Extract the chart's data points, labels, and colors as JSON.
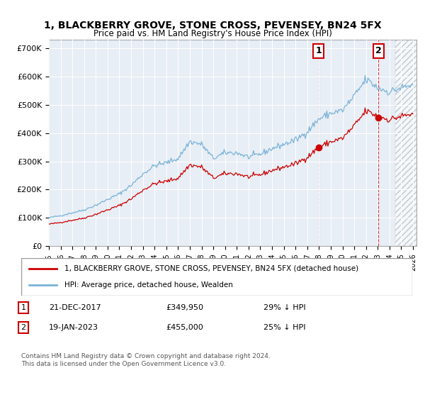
{
  "title": "1, BLACKBERRY GROVE, STONE CROSS, PEVENSEY, BN24 5FX",
  "subtitle": "Price paid vs. HM Land Registry's House Price Index (HPI)",
  "ylabel_ticks": [
    "£0",
    "£100K",
    "£200K",
    "£300K",
    "£400K",
    "£500K",
    "£600K",
    "£700K"
  ],
  "ylim": [
    0,
    730000
  ],
  "xlim_start": 1995.0,
  "xlim_end": 2026.3,
  "hpi_color": "#7ab3d8",
  "price_color": "#cc0000",
  "hatch_start": 2024.5,
  "sale1_year": 2017.97,
  "sale1_price": 349950,
  "sale1_date": "21-DEC-2017",
  "sale1_pct": "29% ↓ HPI",
  "sale2_year": 2023.05,
  "sale2_price": 455000,
  "sale2_date": "19-JAN-2023",
  "sale2_pct": "25% ↓ HPI",
  "legend_label1": "1, BLACKBERRY GROVE, STONE CROSS, PEVENSEY, BN24 5FX (detached house)",
  "legend_label2": "HPI: Average price, detached house, Wealden",
  "footnote": "Contains HM Land Registry data © Crown copyright and database right 2024.\nThis data is licensed under the Open Government Licence v3.0.",
  "bg_color": "#e8eef5",
  "hatch_color": "#d0d8e0"
}
